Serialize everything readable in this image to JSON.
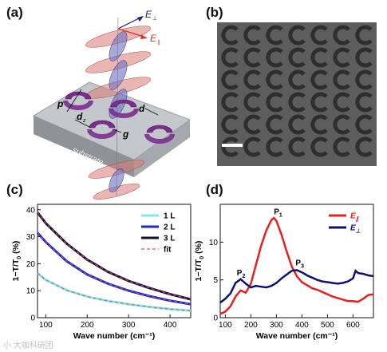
{
  "panels": {
    "a": {
      "label": "(a)",
      "field_perp": "E",
      "field_perp_sub": "⊥",
      "field_par": "E",
      "field_par_sub": "∥",
      "lbl_p": "p",
      "lbl_d": "d",
      "lbl_dz": "d",
      "lbl_dz_sub": "z",
      "lbl_g": "g",
      "substrate": "substrate",
      "colors": {
        "ring": "#7b2d8e",
        "perp_wave": "#5a63b8",
        "par_wave": "#d06060",
        "substrate": "#b9bcc2"
      }
    },
    "b": {
      "label": "(b)",
      "icon": "sem-micrograph"
    },
    "c": {
      "label": "(c)"
    },
    "d": {
      "label": "(d)"
    }
  },
  "chart_data": [
    {
      "panel": "c",
      "type": "line",
      "xlabel": "Wave number (cm⁻¹)",
      "ylabel": "1−T/T",
      "ylabel_sub": "0",
      "ylabel_unit": "(%)",
      "xlim": [
        80,
        450
      ],
      "ylim": [
        0,
        42
      ],
      "xticks": [
        100,
        200,
        300,
        400
      ],
      "yticks": [
        0,
        10,
        20,
        30,
        40
      ],
      "legend_position": "top-right",
      "series": [
        {
          "name": "1 L",
          "color": "#7fe8f0",
          "style": "solid",
          "x": [
            80,
            100,
            150,
            200,
            250,
            300,
            350,
            400,
            450
          ],
          "y": [
            16.5,
            14.0,
            10.2,
            7.8,
            6.2,
            5.0,
            4.0,
            3.2,
            2.6
          ]
        },
        {
          "name": "2 L",
          "color": "#1c2bd6",
          "style": "solid",
          "x": [
            80,
            100,
            150,
            200,
            250,
            300,
            350,
            400,
            450
          ],
          "y": [
            31.5,
            28.0,
            21.0,
            16.0,
            12.6,
            10.0,
            8.0,
            6.3,
            5.0
          ]
        },
        {
          "name": "3 L",
          "color": "#1a0f3a",
          "style": "solid",
          "x": [
            80,
            100,
            150,
            200,
            250,
            300,
            350,
            400,
            450
          ],
          "y": [
            39.0,
            35.0,
            27.5,
            21.5,
            17.0,
            13.6,
            11.0,
            8.7,
            6.8
          ]
        },
        {
          "name": "fit",
          "color": "#d9534f",
          "style": "dashed",
          "fits": [
            "1 L",
            "2 L",
            "3 L"
          ]
        }
      ]
    },
    {
      "panel": "d",
      "type": "line",
      "xlabel": "Wave number (cm⁻¹)",
      "ylabel": "1−T/T",
      "ylabel_sub": "0",
      "ylabel_unit": "(%)",
      "xlim": [
        80,
        680
      ],
      "ylim": [
        0,
        15
      ],
      "xticks": [
        100,
        200,
        300,
        400,
        500,
        600
      ],
      "yticks": [
        0,
        5,
        10
      ],
      "legend_position": "top-right",
      "annotations": [
        {
          "text": "P",
          "sub": "1",
          "x": 290,
          "y": 13.7
        },
        {
          "text": "P",
          "sub": "2",
          "x": 145,
          "y": 5.6
        },
        {
          "text": "P",
          "sub": "3",
          "x": 375,
          "y": 6.9
        }
      ],
      "series": [
        {
          "name": "E",
          "name_sub": "∥",
          "color": "#e8201e",
          "x": [
            80,
            100,
            120,
            140,
            160,
            180,
            200,
            220,
            240,
            260,
            280,
            290,
            300,
            320,
            340,
            360,
            380,
            400,
            420,
            440,
            460,
            480,
            500,
            520,
            540,
            560,
            580,
            600,
            620,
            640,
            660,
            680
          ],
          "y": [
            0.5,
            0.8,
            1.5,
            2.8,
            3.6,
            3.3,
            4.5,
            7.0,
            9.5,
            11.5,
            12.9,
            13.2,
            12.8,
            11.0,
            8.8,
            6.8,
            5.5,
            4.7,
            4.3,
            3.9,
            3.7,
            3.4,
            3.1,
            2.8,
            2.6,
            2.4,
            2.2,
            2.2,
            2.1,
            2.5,
            3.0,
            3.1
          ]
        },
        {
          "name": "E",
          "name_sub": "⊥",
          "color": "#10116e",
          "x": [
            80,
            100,
            120,
            140,
            160,
            180,
            200,
            220,
            240,
            260,
            280,
            300,
            320,
            340,
            360,
            380,
            400,
            420,
            440,
            460,
            480,
            500,
            520,
            540,
            560,
            580,
            600,
            610,
            620,
            640,
            660,
            680
          ],
          "y": [
            2.0,
            2.5,
            3.2,
            4.6,
            5.1,
            4.5,
            4.0,
            4.2,
            4.1,
            4.0,
            4.2,
            4.6,
            5.2,
            5.7,
            6.2,
            6.3,
            6.0,
            5.6,
            5.3,
            5.0,
            4.8,
            4.7,
            4.6,
            4.5,
            4.6,
            4.8,
            5.2,
            6.2,
            5.9,
            5.8,
            5.6,
            5.5
          ]
        }
      ]
    }
  ],
  "watermark": "小 大咖科研团"
}
